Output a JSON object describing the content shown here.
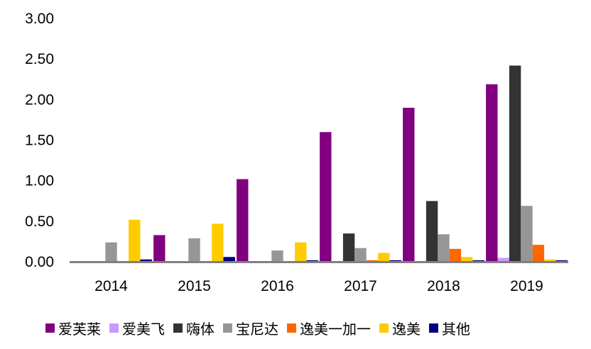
{
  "chart_data": {
    "type": "bar",
    "categories": [
      "2014",
      "2015",
      "2016",
      "2017",
      "2018",
      "2019"
    ],
    "ylim": [
      0,
      3
    ],
    "yticks": [
      "0.00",
      "0.50",
      "1.00",
      "1.50",
      "2.00",
      "2.50",
      "3.00"
    ],
    "grid": false,
    "legend_position": "bottom",
    "series": [
      {
        "name": "爱芙莱",
        "color": "#800080",
        "values": [
          0,
          0.32,
          1.01,
          1.59,
          1.89,
          2.18
        ]
      },
      {
        "name": "爱美飞",
        "color": "#CC99FF",
        "values": [
          0,
          0,
          0,
          0,
          0,
          0.04
        ]
      },
      {
        "name": "嗨体",
        "color": "#333333",
        "values": [
          0,
          0,
          0,
          0.34,
          0.74,
          2.41
        ]
      },
      {
        "name": "宝尼达",
        "color": "#969696",
        "values": [
          0.23,
          0.28,
          0.13,
          0.16,
          0.33,
          0.68
        ]
      },
      {
        "name": "逸美一加一",
        "color": "#FF6600",
        "values": [
          0,
          0,
          0,
          0.01,
          0.15,
          0.2
        ]
      },
      {
        "name": "逸美",
        "color": "#FFCC00",
        "values": [
          0.51,
          0.46,
          0.23,
          0.1,
          0.05,
          0.02
        ]
      },
      {
        "name": "其他",
        "color": "#000080",
        "values": [
          0.02,
          0.05,
          0.01,
          0.01,
          0.01,
          0.01
        ]
      }
    ]
  }
}
